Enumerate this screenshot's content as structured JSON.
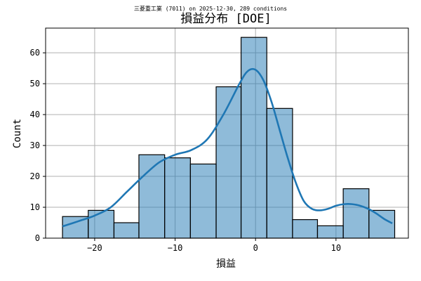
{
  "chart_data": {
    "type": "bar",
    "subtitle": "三菱重工業 (7011) on 2025-12-30, 289 conditions",
    "title": "損益分布 [DOE]",
    "xlabel": "損益",
    "ylabel": "Count",
    "xlim": [
      -26.1,
      19.0
    ],
    "ylim": [
      0,
      68
    ],
    "xticks": [
      -20,
      -10,
      0,
      10
    ],
    "yticks": [
      0,
      10,
      20,
      30,
      40,
      50,
      60
    ],
    "grid": true,
    "bins": [
      {
        "start": -24.0,
        "end": -20.8,
        "count": 7
      },
      {
        "start": -20.8,
        "end": -17.6,
        "count": 9
      },
      {
        "start": -17.6,
        "end": -14.5,
        "count": 5
      },
      {
        "start": -14.5,
        "end": -11.3,
        "count": 27
      },
      {
        "start": -11.3,
        "end": -8.1,
        "count": 26
      },
      {
        "start": -8.1,
        "end": -4.9,
        "count": 24
      },
      {
        "start": -4.9,
        "end": -1.8,
        "count": 49
      },
      {
        "start": -1.8,
        "end": 1.4,
        "count": 65
      },
      {
        "start": 1.4,
        "end": 4.6,
        "count": 42
      },
      {
        "start": 4.6,
        "end": 7.7,
        "count": 6
      },
      {
        "start": 7.7,
        "end": 10.9,
        "count": 4
      },
      {
        "start": 10.9,
        "end": 14.1,
        "count": 16
      },
      {
        "start": 14.1,
        "end": 17.3,
        "count": 9
      }
    ],
    "kde": {
      "x": [
        -24,
        -22,
        -20,
        -18,
        -16,
        -14,
        -12,
        -10,
        -8,
        -6,
        -4,
        -2,
        -1,
        0,
        1,
        2,
        3,
        4,
        5,
        6,
        7,
        8,
        9,
        10,
        11,
        12,
        13,
        14,
        15,
        16,
        17
      ],
      "y": [
        3.8,
        5.5,
        7.3,
        10,
        15,
        20,
        24.5,
        27,
        28.5,
        32,
        40,
        50,
        54,
        54.5,
        51,
        44,
        35,
        26,
        18,
        12,
        9.5,
        9,
        9.5,
        10.5,
        11,
        11,
        10.5,
        9.5,
        8,
        6.2,
        4.8
      ]
    },
    "color": "#1f77b4"
  }
}
